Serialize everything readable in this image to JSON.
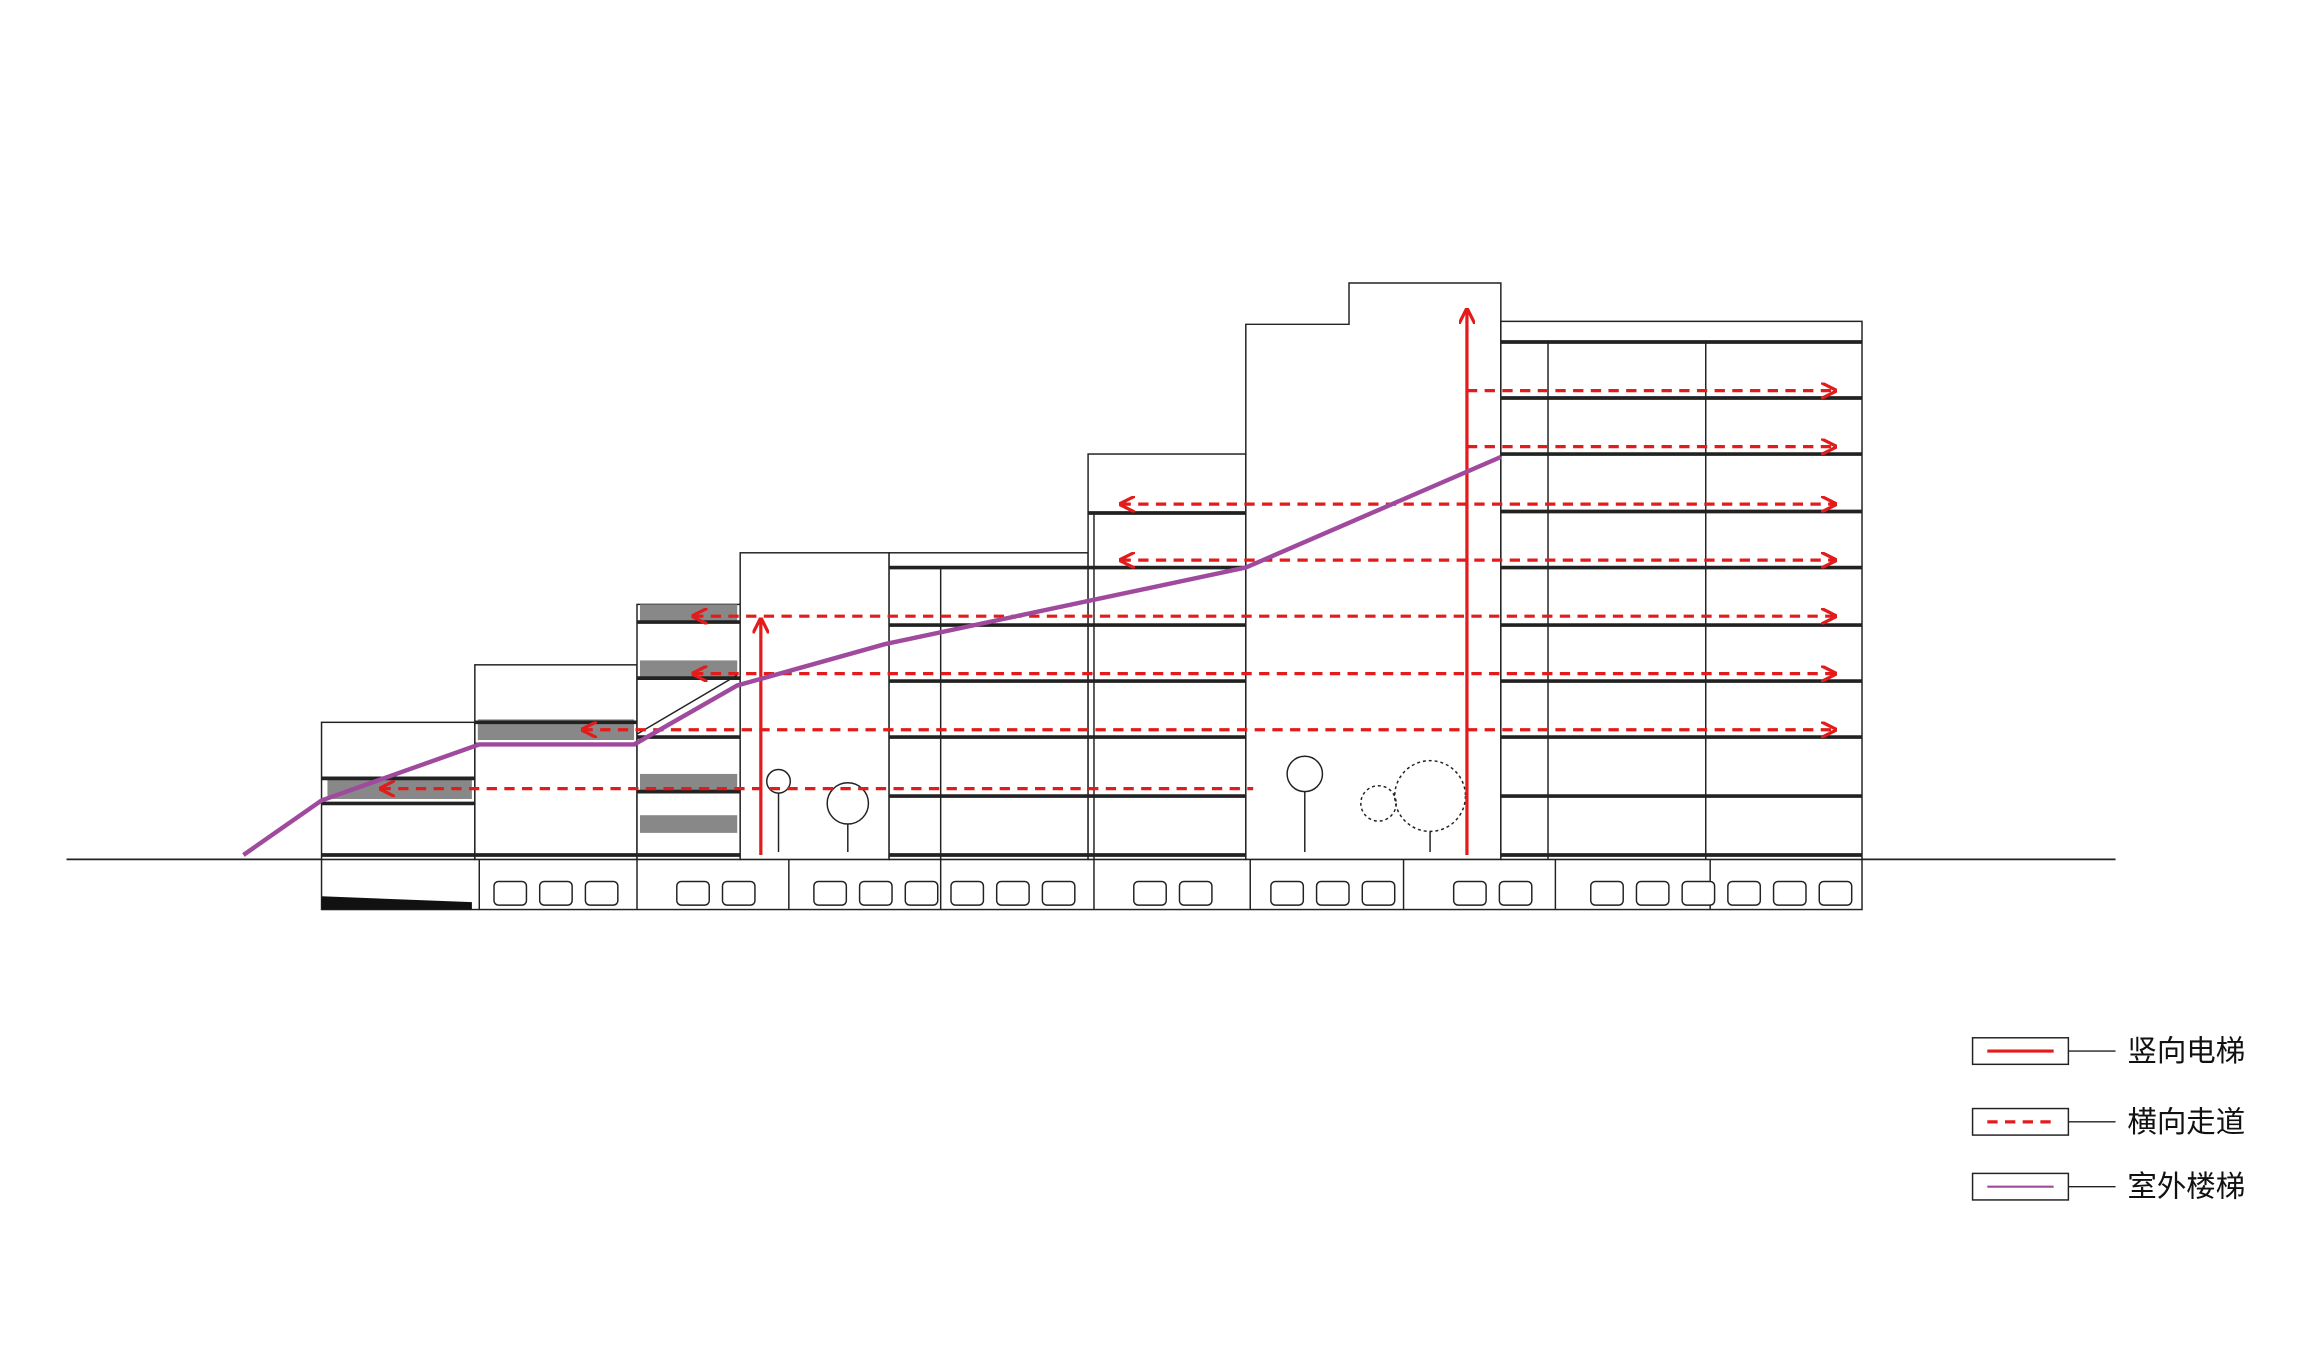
{
  "legend": {
    "items": [
      {
        "label": "竖向电梯"
      },
      {
        "label": "横向走道"
      },
      {
        "label": "室外楼梯"
      }
    ]
  }
}
